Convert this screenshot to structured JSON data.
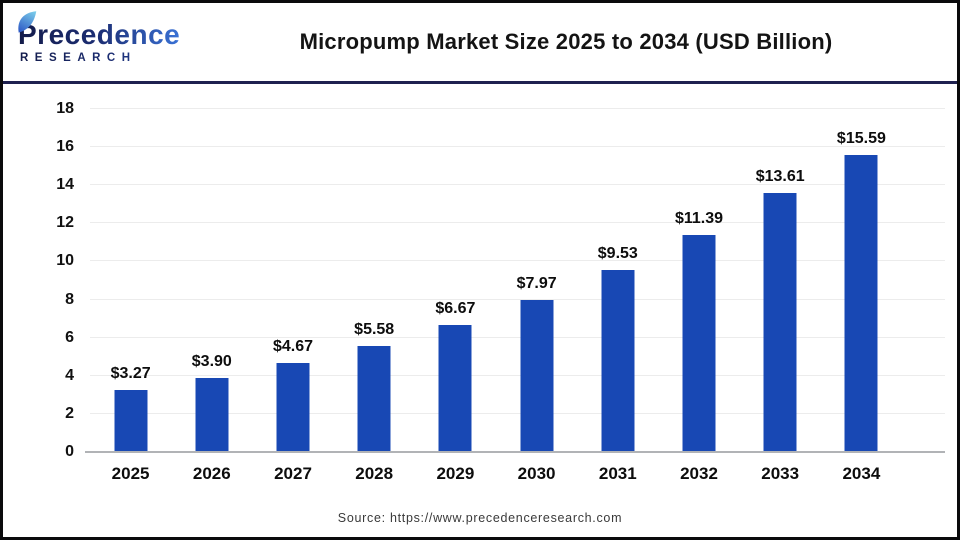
{
  "brand": {
    "name": "Precedence",
    "subtitle": "RESEARCH"
  },
  "header": {
    "title": "Micropump Market Size 2025 to 2034 (USD Billion)"
  },
  "footer": {
    "source": "Source: https://www.precedenceresearch.com"
  },
  "colors": {
    "bar": "#1848b4",
    "header_divider": "#1f2150",
    "outer_border": "#0a0a0c",
    "gridline": "#ececec",
    "baseline": "#b1b3b6",
    "brand_navy": "#131b4a",
    "brand_blue": "#3a72d6",
    "leaf_light": "#7fd2ec",
    "leaf_dark": "#2a54c4"
  },
  "chart_data": {
    "type": "bar",
    "title": "Micropump Market Size 2025 to 2034 (USD Billion)",
    "categories": [
      "2025",
      "2026",
      "2027",
      "2028",
      "2029",
      "2030",
      "2031",
      "2032",
      "2033",
      "2034"
    ],
    "values": [
      3.27,
      3.9,
      4.67,
      5.58,
      6.67,
      7.97,
      9.53,
      11.39,
      13.61,
      15.59
    ],
    "value_labels": [
      "$3.27",
      "$3.90",
      "$4.67",
      "$5.58",
      "$6.67",
      "$7.97",
      "$9.53",
      "$11.39",
      "$13.61",
      "$15.59"
    ],
    "xlabel": "",
    "ylabel": "",
    "ylim": [
      0,
      18
    ],
    "yticks": [
      0,
      2,
      4,
      6,
      8,
      10,
      12,
      14,
      16,
      18
    ],
    "grid": true,
    "legend": false,
    "bar_color": "#1848b4"
  }
}
